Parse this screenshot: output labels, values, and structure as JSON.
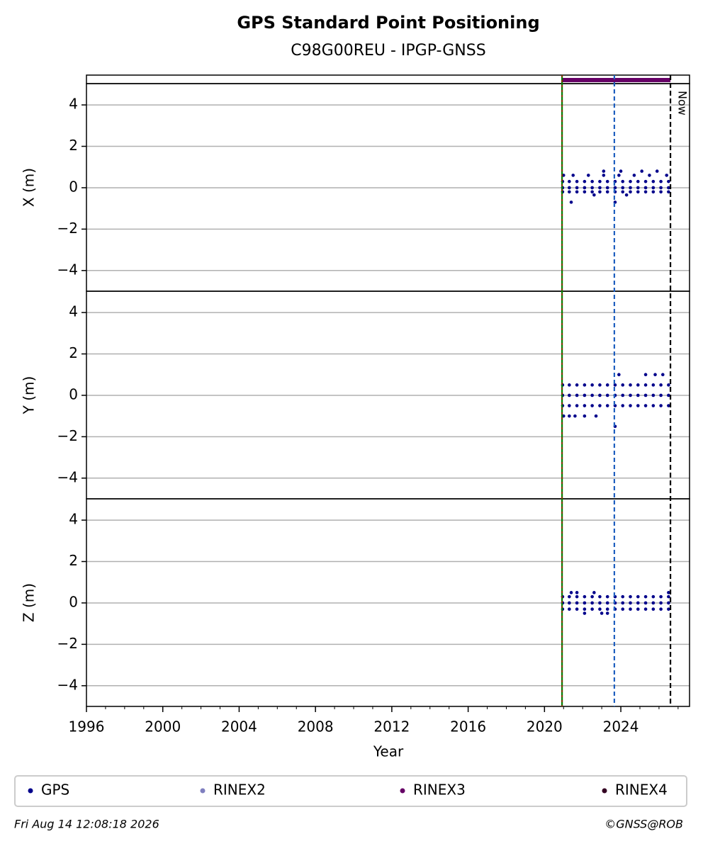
{
  "chart_data": {
    "title": "GPS Standard Point Positioning",
    "subtitle": "C98G00REU - IPGP-GNSS",
    "xlabel": "Year",
    "xlim": [
      1996,
      2027.6
    ],
    "xticks": [
      1996,
      2000,
      2004,
      2008,
      2012,
      2016,
      2020,
      2024
    ],
    "xminorticks": [
      1997,
      1998,
      1999,
      2001,
      2002,
      2003,
      2005,
      2006,
      2007,
      2009,
      2010,
      2011,
      2013,
      2014,
      2015,
      2017,
      2018,
      2019,
      2021,
      2022,
      2023,
      2025,
      2026,
      2027
    ],
    "events": [
      {
        "x": 2020.92,
        "color": "#008000"
      },
      {
        "x": 2023.66,
        "color": "#1f5fbf"
      }
    ],
    "now": {
      "label": "Now",
      "x": 2026.6
    },
    "availability": {
      "color": "#660066",
      "x": [
        2020.92,
        2026.6
      ]
    },
    "legend": [
      {
        "name": "GPS",
        "color": "#00008b"
      },
      {
        "name": "RINEX2",
        "color": "#7f7fbf"
      },
      {
        "name": "RINEX3",
        "color": "#660066"
      },
      {
        "name": "RINEX4",
        "color": "#330022"
      }
    ],
    "footer_left": "Fri Aug 14 12:08:18 2026",
    "footer_right": "©GNSS@ROB",
    "panels": [
      {
        "type": "scatter",
        "ylabel": "X (m)",
        "color": "#00008b",
        "grid": true,
        "ylim": [
          -5,
          5.03
        ],
        "yticks": [
          {
            "value": -4,
            "label": "−4"
          },
          {
            "value": -2,
            "label": "−2"
          },
          0,
          2,
          4
        ],
        "x": [
          2020.95,
          2021.3,
          2021.7,
          2022.1,
          2022.5,
          2022.9,
          2023.3,
          2023.7,
          2024.1,
          2024.5,
          2024.9,
          2025.3,
          2025.7,
          2026.1,
          2026.5,
          2020.95,
          2021.3,
          2021.7,
          2022.1,
          2022.5,
          2022.9,
          2023.3,
          2023.7,
          2024.1,
          2024.5,
          2024.9,
          2025.3,
          2025.7,
          2026.1,
          2026.5,
          2020.95,
          2021.3,
          2021.7,
          2022.1,
          2022.5,
          2022.9,
          2023.3,
          2023.7,
          2024.1,
          2024.5,
          2024.9,
          2025.3,
          2025.7,
          2026.1,
          2026.5,
          2021.0,
          2021.5,
          2022.3,
          2023.1,
          2023.9,
          2024.7,
          2025.5,
          2026.4,
          2021.4,
          2023.7,
          2023.1,
          2024.0,
          2025.1,
          2025.9,
          2022.6,
          2024.3
        ],
        "y": [
          0.3,
          0.3,
          0.3,
          0.3,
          0.3,
          0.3,
          0.3,
          0.3,
          0.3,
          0.3,
          0.3,
          0.3,
          0.3,
          0.3,
          0.3,
          0,
          0,
          0,
          0,
          0,
          0,
          0,
          0,
          0,
          0,
          0,
          0,
          0,
          0,
          0,
          -0.2,
          -0.2,
          -0.2,
          -0.2,
          -0.2,
          -0.2,
          -0.2,
          -0.2,
          -0.2,
          -0.2,
          -0.2,
          -0.2,
          -0.2,
          -0.2,
          -0.2,
          0.6,
          0.6,
          0.6,
          0.6,
          0.6,
          0.6,
          0.6,
          0.6,
          -0.7,
          -0.7,
          0.8,
          0.8,
          0.8,
          0.8,
          -0.35,
          -0.35
        ]
      },
      {
        "type": "scatter",
        "ylabel": "Y (m)",
        "color": "#00008b",
        "grid": true,
        "ylim": [
          -5,
          5.03
        ],
        "yticks": [
          {
            "value": -4,
            "label": "−4"
          },
          {
            "value": -2,
            "label": "−2"
          },
          0,
          2,
          4
        ],
        "x": [
          2020.95,
          2021.3,
          2021.7,
          2022.1,
          2022.5,
          2022.9,
          2023.3,
          2023.7,
          2024.1,
          2024.5,
          2024.9,
          2025.3,
          2025.7,
          2026.1,
          2026.5,
          2020.95,
          2021.3,
          2021.7,
          2022.1,
          2022.5,
          2022.9,
          2023.3,
          2023.7,
          2024.1,
          2024.5,
          2024.9,
          2025.3,
          2025.7,
          2026.1,
          2026.5,
          2020.95,
          2021.3,
          2021.7,
          2022.1,
          2022.5,
          2022.9,
          2023.3,
          2023.7,
          2024.1,
          2024.5,
          2024.9,
          2025.3,
          2025.7,
          2026.1,
          2026.5,
          2021.0,
          2021.3,
          2021.6,
          2022.1,
          2022.7,
          2023.9,
          2023.7,
          2025.3,
          2025.8,
          2026.2
        ],
        "y": [
          0.5,
          0.5,
          0.5,
          0.5,
          0.5,
          0.5,
          0.5,
          0.5,
          0.5,
          0.5,
          0.5,
          0.5,
          0.5,
          0.5,
          0.5,
          0,
          0,
          0,
          0,
          0,
          0,
          0,
          0,
          0,
          0,
          0,
          0,
          0,
          0,
          0,
          -0.5,
          -0.5,
          -0.5,
          -0.5,
          -0.5,
          -0.5,
          -0.5,
          -0.5,
          -0.5,
          -0.5,
          -0.5,
          -0.5,
          -0.5,
          -0.5,
          -0.5,
          -1.0,
          -1.0,
          -1.0,
          -1.0,
          -1.0,
          1.0,
          -1.5,
          1.0,
          1.0,
          1.0
        ]
      },
      {
        "type": "scatter",
        "ylabel": "Z (m)",
        "color": "#00008b",
        "grid": true,
        "ylim": [
          -5,
          5.03
        ],
        "yticks": [
          {
            "value": -4,
            "label": "−4"
          },
          {
            "value": -2,
            "label": "−2"
          },
          0,
          2,
          4
        ],
        "x": [
          2020.95,
          2021.3,
          2021.7,
          2022.1,
          2022.5,
          2022.9,
          2023.3,
          2023.7,
          2024.1,
          2024.5,
          2024.9,
          2025.3,
          2025.7,
          2026.1,
          2026.5,
          2020.95,
          2021.3,
          2021.7,
          2022.1,
          2022.5,
          2022.9,
          2023.3,
          2023.7,
          2024.1,
          2024.5,
          2024.9,
          2025.3,
          2025.7,
          2026.1,
          2026.5,
          2020.95,
          2021.3,
          2021.7,
          2022.1,
          2022.5,
          2022.9,
          2023.3,
          2023.7,
          2024.1,
          2024.5,
          2024.9,
          2025.3,
          2025.7,
          2026.1,
          2026.5,
          2021.4,
          2021.7,
          2022.6,
          2026.5,
          2022.1,
          2023.0,
          2023.3
        ],
        "y": [
          0.3,
          0.3,
          0.3,
          0.3,
          0.3,
          0.3,
          0.3,
          0.3,
          0.3,
          0.3,
          0.3,
          0.3,
          0.3,
          0.3,
          0.3,
          0,
          0,
          0,
          0,
          0,
          0,
          0,
          0,
          0,
          0,
          0,
          0,
          0,
          0,
          0,
          -0.3,
          -0.3,
          -0.3,
          -0.3,
          -0.3,
          -0.3,
          -0.3,
          -0.3,
          -0.3,
          -0.3,
          -0.3,
          -0.3,
          -0.3,
          -0.3,
          -0.3,
          0.5,
          0.5,
          0.5,
          0.5,
          -0.5,
          -0.5,
          -0.5
        ]
      }
    ]
  }
}
